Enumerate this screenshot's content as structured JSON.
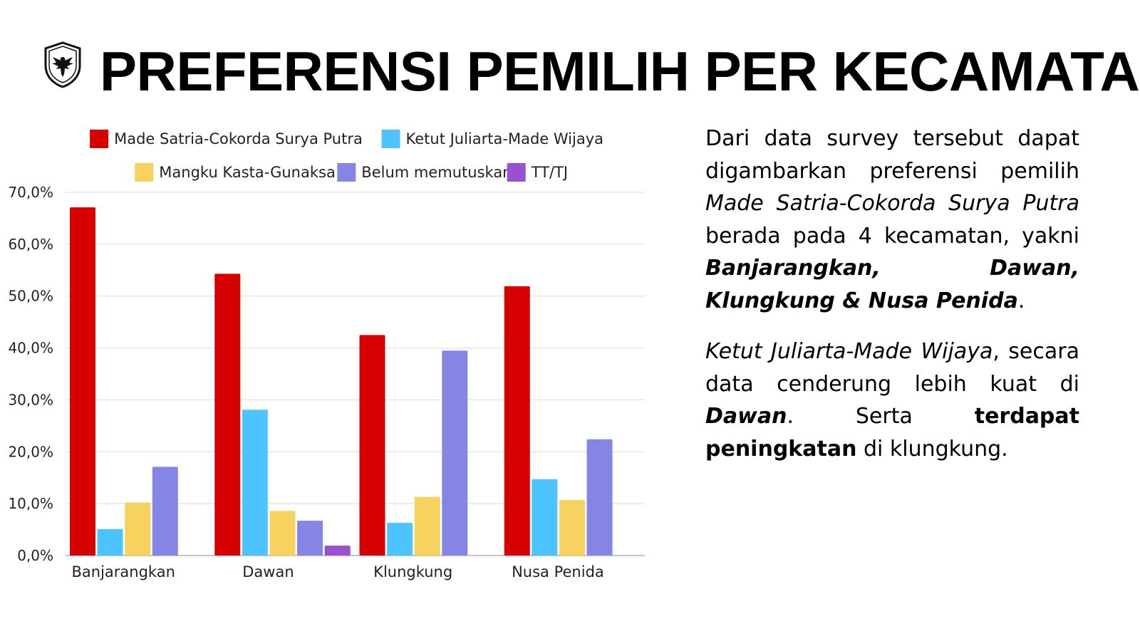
{
  "title": "PREFERENSI PEMILIH PER KECAMATAN",
  "logo": {
    "icon": "eagle-shield-icon"
  },
  "chart_data": {
    "type": "bar",
    "categories": [
      "Banjarangkan",
      "Dawan",
      "Klungkung",
      "Nusa Penida"
    ],
    "series": [
      {
        "name": "Made Satria-Cokorda Surya Putra",
        "color": "#d60000",
        "values": [
          67.1,
          54.3,
          42.5,
          51.9
        ]
      },
      {
        "name": "Ketut Juliarta-Made Wijaya",
        "color": "#4dc3ff",
        "values": [
          5.1,
          28.1,
          6.3,
          14.7
        ]
      },
      {
        "name": "Mangku Kasta-Gunaksa",
        "color": "#f5d35e",
        "values": [
          10.2,
          8.6,
          11.3,
          10.7
        ]
      },
      {
        "name": "Belum memutuskan",
        "color": "#8585e6",
        "values": [
          17.1,
          6.7,
          39.5,
          22.4
        ]
      },
      {
        "name": "TT/TJ",
        "color": "#9b4fd1",
        "values": [
          0,
          1.9,
          0,
          0
        ]
      }
    ],
    "yticks": [
      "0,0%",
      "10,0%",
      "20,0%",
      "30,0%",
      "40,0%",
      "50,0%",
      "60,0%",
      "70,0%"
    ],
    "ylim": [
      0,
      70
    ],
    "grid": true,
    "legend": "top"
  },
  "description": {
    "p1": {
      "a": "Dari data survey tersebut dapat digambarkan preferensi pemilih ",
      "b": "Made Satria-Cokorda Surya Putra",
      "c": " berada pada 4 kecamatan, yakni ",
      "d": "Banjarangkan, Dawan, Klungkung & Nusa Penida",
      "e": "."
    },
    "p2": {
      "a": "Ketut Juliarta-Made Wijaya",
      "b": ", secara data cenderung lebih kuat di ",
      "c": "Dawan",
      "d": ". Serta ",
      "e": "terdapat peningkatan",
      "f": " di klungkung."
    }
  }
}
